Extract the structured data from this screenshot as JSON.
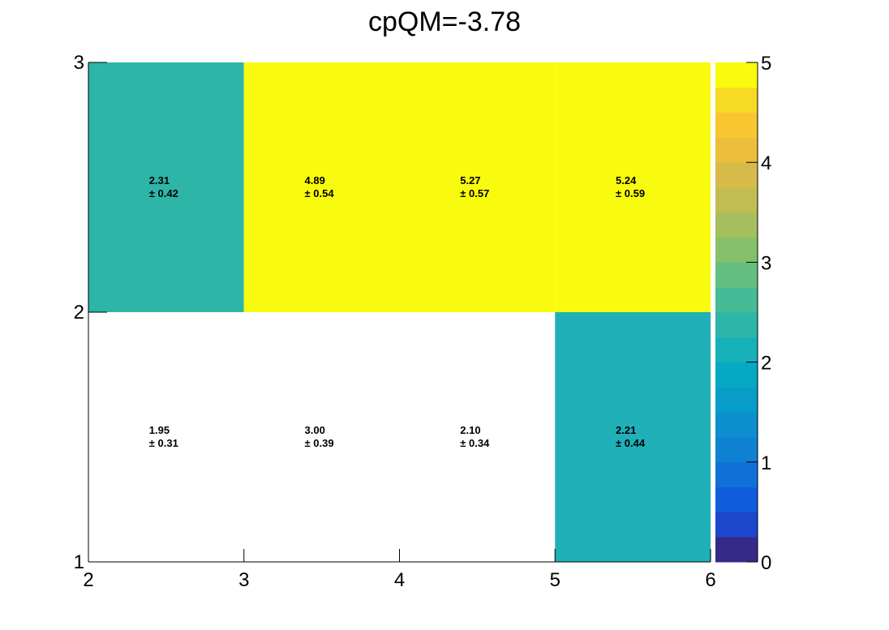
{
  "chart_data": {
    "type": "heatmap",
    "title": "cpQM=-3.78",
    "xlabel": "",
    "ylabel": "",
    "x_edges": [
      2,
      3,
      4,
      5,
      6
    ],
    "y_edges": [
      1,
      2,
      3
    ],
    "xlim": [
      2,
      6
    ],
    "ylim": [
      1,
      3
    ],
    "x_tick_labels": [
      "2",
      "3",
      "4",
      "5",
      "6"
    ],
    "y_tick_labels": [
      "1",
      "2",
      "3"
    ],
    "zlim": [
      0,
      5
    ],
    "z_tick_labels": [
      "0",
      "1",
      "2",
      "3",
      "4",
      "5"
    ],
    "palette_bins": 20,
    "palette": [
      "#352a87",
      "#1c46cc",
      "#0f5cdd",
      "#1170d8",
      "#0f81d3",
      "#0b90cd",
      "#079dc8",
      "#05a9c4",
      "#16b1b8",
      "#2db6a8",
      "#45bb96",
      "#62bf80",
      "#86c06c",
      "#a5bf5d",
      "#c1bd52",
      "#d7bb49",
      "#ebbf3a",
      "#f8c630",
      "#f6da23",
      "#f9fb0e"
    ],
    "grid": false,
    "legend": "none",
    "cells": [
      {
        "x": 2.5,
        "y": 2.5,
        "value": 2.31,
        "error": 0.42,
        "value_label": "2.31",
        "error_label": "± 0.42"
      },
      {
        "x": 3.5,
        "y": 2.5,
        "value": 4.89,
        "error": 0.54,
        "value_label": "4.89",
        "error_label": "± 0.54"
      },
      {
        "x": 4.5,
        "y": 2.5,
        "value": 5.27,
        "error": 0.57,
        "value_label": "5.27",
        "error_label": "± 0.57"
      },
      {
        "x": 5.5,
        "y": 2.5,
        "value": 5.24,
        "error": 0.59,
        "value_label": "5.24",
        "error_label": "± 0.59"
      },
      {
        "x": 2.5,
        "y": 1.5,
        "value": 1.95,
        "error": 0.31,
        "value_label": "1.95",
        "error_label": "± 0.31"
      },
      {
        "x": 3.5,
        "y": 1.5,
        "value": 3.0,
        "error": 0.39,
        "value_label": "3.00",
        "error_label": "± 0.39"
      },
      {
        "x": 4.5,
        "y": 1.5,
        "value": 2.1,
        "error": 0.34,
        "value_label": "2.10",
        "error_label": "± 0.34"
      },
      {
        "x": 5.5,
        "y": 1.5,
        "value": 2.21,
        "error": 0.44,
        "value_label": "2.21",
        "error_label": "± 0.44"
      }
    ],
    "cell_fill_colors": [
      "#2db6a8",
      "#f9fb0e",
      "#f9fb0e",
      "#f9fb0e",
      "#ffffff",
      "#ffffff",
      "#ffffff",
      "#1fb0b8"
    ]
  }
}
